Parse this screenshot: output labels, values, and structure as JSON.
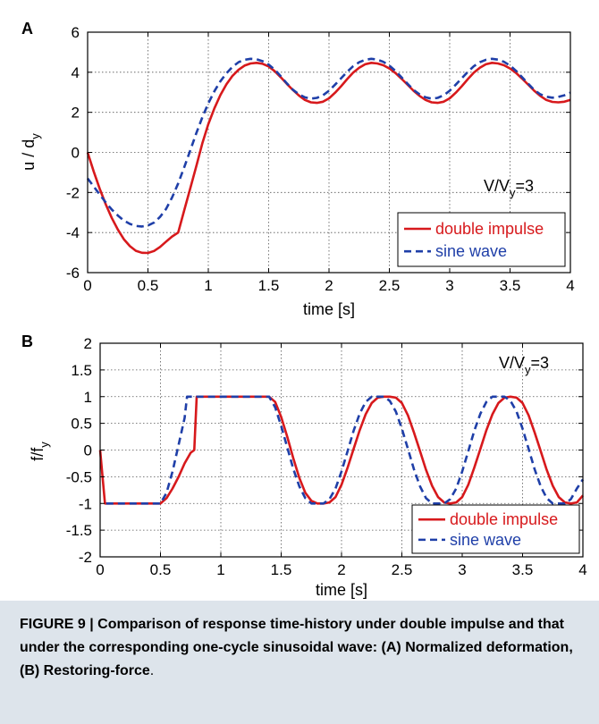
{
  "figure": {
    "caption_label": "FIGURE 9 |",
    "caption_text": " Comparison of response time-history under double impulse and that under the corresponding one-cycle sinusoidal wave: (A) Normalized deformation, (B) Restoring-force",
    "caption_end": "."
  },
  "colors": {
    "double_impulse": "#d7191c",
    "sine_wave": "#1f3fa8",
    "grid": "#555555"
  },
  "chart_data": [
    {
      "type": "line",
      "panel": "A",
      "xlabel": "time [s]",
      "ylabel_main": "u / d",
      "ylabel_sub": "y",
      "xlim": [
        0,
        4
      ],
      "ylim": [
        -6,
        6
      ],
      "xticks": [
        0,
        0.5,
        1,
        1.5,
        2,
        2.5,
        3,
        3.5,
        4
      ],
      "xtick_labels": [
        "0",
        "0.5",
        "1",
        "1.5",
        "2",
        "2.5",
        "3",
        "3.5",
        "4"
      ],
      "yticks": [
        -6,
        -4,
        -2,
        0,
        2,
        4,
        6
      ],
      "ytick_labels": [
        "-6",
        "-4",
        "-2",
        "0",
        "2",
        "4",
        "6"
      ],
      "grid": true,
      "legend_position": "bottom-right",
      "annotation": {
        "main": "V/V",
        "sub": "y",
        "tail": "=3"
      },
      "series": [
        {
          "name": "double impulse",
          "style": "solid",
          "x": [
            0,
            0.05,
            0.1,
            0.15,
            0.2,
            0.25,
            0.3,
            0.35,
            0.4,
            0.45,
            0.5,
            0.55,
            0.6,
            0.65,
            0.7,
            0.75,
            0.8,
            0.85,
            0.9,
            0.95,
            1.0,
            1.05,
            1.1,
            1.15,
            1.2,
            1.25,
            1.3,
            1.35,
            1.4,
            1.45,
            1.5,
            1.55,
            1.6,
            1.65,
            1.7,
            1.75,
            1.8,
            1.85,
            1.9,
            1.95,
            2.0,
            2.05,
            2.1,
            2.15,
            2.2,
            2.25,
            2.3,
            2.35,
            2.4,
            2.45,
            2.5,
            2.55,
            2.6,
            2.65,
            2.7,
            2.75,
            2.8,
            2.85,
            2.9,
            2.95,
            3.0,
            3.05,
            3.1,
            3.15,
            3.2,
            3.25,
            3.3,
            3.35,
            3.4,
            3.45,
            3.5,
            3.55,
            3.6,
            3.65,
            3.7,
            3.75,
            3.8,
            3.85,
            3.9,
            3.95,
            4.0
          ],
          "y": [
            0,
            -0.95,
            -1.81,
            -2.59,
            -3.27,
            -3.85,
            -4.33,
            -4.68,
            -4.91,
            -5.01,
            -5.02,
            -4.92,
            -4.72,
            -4.45,
            -4.2,
            -4.0,
            -2.9,
            -1.8,
            -0.7,
            0.45,
            1.41,
            2.2,
            2.86,
            3.4,
            3.82,
            4.12,
            4.33,
            4.44,
            4.47,
            4.42,
            4.29,
            4.05,
            3.75,
            3.42,
            3.12,
            2.84,
            2.62,
            2.5,
            2.47,
            2.53,
            2.7,
            2.98,
            3.3,
            3.66,
            3.98,
            4.23,
            4.4,
            4.47,
            4.44,
            4.35,
            4.19,
            3.96,
            3.68,
            3.38,
            3.08,
            2.82,
            2.62,
            2.5,
            2.47,
            2.53,
            2.7,
            2.98,
            3.3,
            3.66,
            3.98,
            4.23,
            4.4,
            4.47,
            4.44,
            4.35,
            4.19,
            3.96,
            3.68,
            3.38,
            3.08,
            2.82,
            2.62,
            2.52,
            2.5,
            2.53,
            2.62
          ]
        },
        {
          "name": "sine wave",
          "style": "dashed",
          "x": [
            0,
            0.05,
            0.1,
            0.15,
            0.2,
            0.25,
            0.3,
            0.35,
            0.4,
            0.45,
            0.5,
            0.55,
            0.6,
            0.65,
            0.7,
            0.75,
            0.8,
            0.85,
            0.9,
            0.95,
            1.0,
            1.05,
            1.1,
            1.15,
            1.2,
            1.25,
            1.3,
            1.35,
            1.4,
            1.45,
            1.5,
            1.55,
            1.6,
            1.65,
            1.7,
            1.75,
            1.8,
            1.85,
            1.9,
            1.95,
            2.0,
            2.05,
            2.1,
            2.15,
            2.2,
            2.25,
            2.3,
            2.35,
            2.4,
            2.45,
            2.5,
            2.55,
            2.6,
            2.65,
            2.7,
            2.75,
            2.8,
            2.85,
            2.9,
            2.95,
            3.0,
            3.05,
            3.1,
            3.15,
            3.2,
            3.25,
            3.3,
            3.35,
            3.4,
            3.45,
            3.5,
            3.55,
            3.6,
            3.65,
            3.7,
            3.75,
            3.8,
            3.85,
            3.9,
            3.95,
            4.0
          ],
          "y": [
            -1.3,
            -1.7,
            -2.1,
            -2.5,
            -2.85,
            -3.15,
            -3.4,
            -3.57,
            -3.67,
            -3.7,
            -3.65,
            -3.5,
            -3.22,
            -2.82,
            -2.25,
            -1.55,
            -0.75,
            0.1,
            0.95,
            1.75,
            2.45,
            3.05,
            3.55,
            3.95,
            4.27,
            4.5,
            4.62,
            4.67,
            4.65,
            4.55,
            4.38,
            4.13,
            3.8,
            3.45,
            3.13,
            2.9,
            2.75,
            2.68,
            2.72,
            2.85,
            3.08,
            3.38,
            3.7,
            4.02,
            4.3,
            4.5,
            4.62,
            4.67,
            4.63,
            4.52,
            4.33,
            4.07,
            3.75,
            3.43,
            3.12,
            2.9,
            2.75,
            2.68,
            2.72,
            2.85,
            3.08,
            3.38,
            3.7,
            4.02,
            4.3,
            4.5,
            4.62,
            4.67,
            4.63,
            4.52,
            4.33,
            4.07,
            3.75,
            3.43,
            3.12,
            2.9,
            2.78,
            2.73,
            2.77,
            2.85,
            2.98
          ]
        }
      ]
    },
    {
      "type": "line",
      "panel": "B",
      "xlabel": "time [s]",
      "ylabel_main": "f/f",
      "ylabel_sub": "y",
      "xlim": [
        0,
        4
      ],
      "ylim": [
        -2,
        2
      ],
      "xticks": [
        0,
        0.5,
        1,
        1.5,
        2,
        2.5,
        3,
        3.5,
        4
      ],
      "xtick_labels": [
        "0",
        "0.5",
        "1",
        "1.5",
        "2",
        "2.5",
        "3",
        "3.5",
        "4"
      ],
      "yticks": [
        -2,
        -1.5,
        -1,
        -0.5,
        0,
        0.5,
        1,
        1.5,
        2
      ],
      "ytick_labels": [
        "-2",
        "-1.5",
        "-1",
        "-0.5",
        "0",
        "0.5",
        "1",
        "1.5",
        "2"
      ],
      "grid": true,
      "legend_position": "bottom-right",
      "annotation": {
        "main": "V/V",
        "sub": "y",
        "tail": "=3"
      },
      "series": [
        {
          "name": "double impulse",
          "style": "solid",
          "x": [
            0,
            0.04,
            0.5,
            0.55,
            0.6,
            0.65,
            0.7,
            0.75,
            0.78,
            0.8,
            1.4,
            1.45,
            1.5,
            1.55,
            1.6,
            1.65,
            1.7,
            1.75,
            1.8,
            1.85,
            1.9,
            1.95,
            2.0,
            2.05,
            2.1,
            2.15,
            2.2,
            2.25,
            2.3,
            2.35,
            2.4,
            2.45,
            2.5,
            2.55,
            2.6,
            2.65,
            2.7,
            2.75,
            2.8,
            2.85,
            2.9,
            2.95,
            3.0,
            3.05,
            3.1,
            3.15,
            3.2,
            3.25,
            3.3,
            3.35,
            3.4,
            3.45,
            3.5,
            3.55,
            3.6,
            3.65,
            3.7,
            3.75,
            3.8,
            3.85,
            3.9,
            3.95,
            4.0
          ],
          "y": [
            0,
            -1,
            -1,
            -0.9,
            -0.72,
            -0.5,
            -0.25,
            -0.05,
            0,
            1,
            1,
            0.9,
            0.62,
            0.25,
            -0.15,
            -0.52,
            -0.8,
            -0.95,
            -1,
            -1,
            -0.98,
            -0.88,
            -0.65,
            -0.33,
            0.02,
            0.37,
            0.67,
            0.88,
            0.98,
            1,
            1,
            0.98,
            0.88,
            0.65,
            0.33,
            -0.02,
            -0.37,
            -0.67,
            -0.88,
            -0.98,
            -1,
            -0.98,
            -0.88,
            -0.65,
            -0.33,
            0.02,
            0.37,
            0.67,
            0.88,
            0.98,
            1,
            0.98,
            0.88,
            0.65,
            0.33,
            -0.02,
            -0.37,
            -0.67,
            -0.88,
            -0.98,
            -1,
            -0.98,
            -0.85
          ]
        },
        {
          "name": "sine wave",
          "style": "dashed",
          "x": [
            0.05,
            0.5,
            0.55,
            0.6,
            0.65,
            0.7,
            0.72,
            1.4,
            1.45,
            1.5,
            1.55,
            1.6,
            1.65,
            1.7,
            1.75,
            1.8,
            1.85,
            1.9,
            1.95,
            2.0,
            2.05,
            2.1,
            2.15,
            2.2,
            2.25,
            2.3,
            2.35,
            2.4,
            2.45,
            2.5,
            2.55,
            2.6,
            2.65,
            2.7,
            2.75,
            2.8,
            2.85,
            2.9,
            2.95,
            3.0,
            3.05,
            3.1,
            3.15,
            3.2,
            3.25,
            3.3,
            3.35,
            3.4,
            3.45,
            3.5,
            3.55,
            3.6,
            3.65,
            3.7,
            3.75,
            3.8,
            3.85,
            3.9,
            3.95,
            4.0
          ],
          "y": [
            -1,
            -1,
            -0.8,
            -0.4,
            0.1,
            0.6,
            1,
            1,
            0.8,
            0.45,
            0.05,
            -0.35,
            -0.68,
            -0.9,
            -1,
            -1,
            -1,
            -0.92,
            -0.72,
            -0.4,
            -0.02,
            0.36,
            0.68,
            0.9,
            1,
            1,
            1,
            0.92,
            0.72,
            0.4,
            0.02,
            -0.36,
            -0.68,
            -0.9,
            -1,
            -1,
            -1,
            -0.92,
            -0.72,
            -0.4,
            -0.02,
            0.36,
            0.68,
            0.9,
            1,
            1,
            1,
            0.92,
            0.72,
            0.4,
            0.02,
            -0.36,
            -0.68,
            -0.9,
            -1,
            -1,
            -1,
            -0.92,
            -0.72,
            -0.55
          ]
        }
      ]
    }
  ]
}
